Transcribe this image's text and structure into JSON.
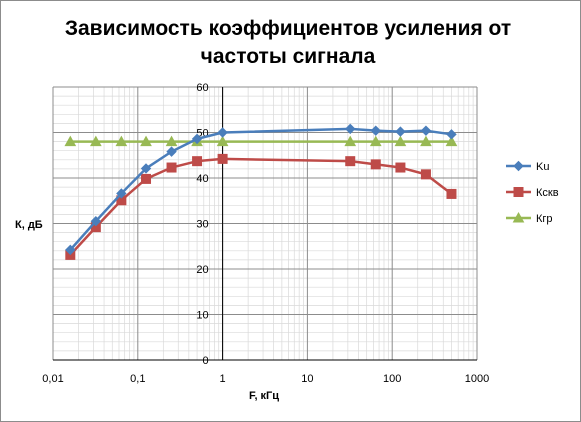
{
  "chart_data": {
    "type": "line",
    "title_line1": "Зависимость коэффициентов усиления от",
    "title_line2": "частоты сигнала",
    "xlabel": "F, кГц",
    "ylabel": "К, дБ",
    "x_scale": "log",
    "xlim": [
      0.01,
      1000
    ],
    "ylim": [
      0,
      60
    ],
    "x_tick_labels": [
      "0,01",
      "0,1",
      "1",
      "10",
      "100",
      "1000"
    ],
    "y_tick_labels": [
      "0",
      "10",
      "20",
      "30",
      "40",
      "50",
      "60"
    ],
    "grid": true,
    "legend_position": "right",
    "series": [
      {
        "name": "Ku",
        "color": "#4a7ebb",
        "marker": "diamond",
        "x": [
          0.016,
          0.032,
          0.064,
          0.125,
          0.25,
          0.5,
          1,
          32,
          64,
          125,
          250,
          500
        ],
        "y": [
          24.2,
          30.5,
          36.6,
          42.1,
          45.8,
          48.6,
          50.0,
          50.8,
          50.4,
          50.2,
          50.4,
          49.6
        ]
      },
      {
        "name": "Кскв",
        "color": "#be4b48",
        "marker": "square",
        "x": [
          0.016,
          0.032,
          0.064,
          0.125,
          0.25,
          0.5,
          1,
          32,
          64,
          125,
          250,
          500
        ],
        "y": [
          23.1,
          29.2,
          35.1,
          39.8,
          42.3,
          43.7,
          44.2,
          43.7,
          43.0,
          42.3,
          40.8,
          36.5
        ]
      },
      {
        "name": "Кгр",
        "color": "#98b954",
        "marker": "triangle",
        "x": [
          0.016,
          0.032,
          0.064,
          0.125,
          0.25,
          0.5,
          1,
          32,
          64,
          125,
          250,
          500
        ],
        "y": [
          48,
          48,
          48,
          48,
          48,
          48,
          48,
          48,
          48,
          48,
          48,
          48
        ]
      }
    ]
  }
}
